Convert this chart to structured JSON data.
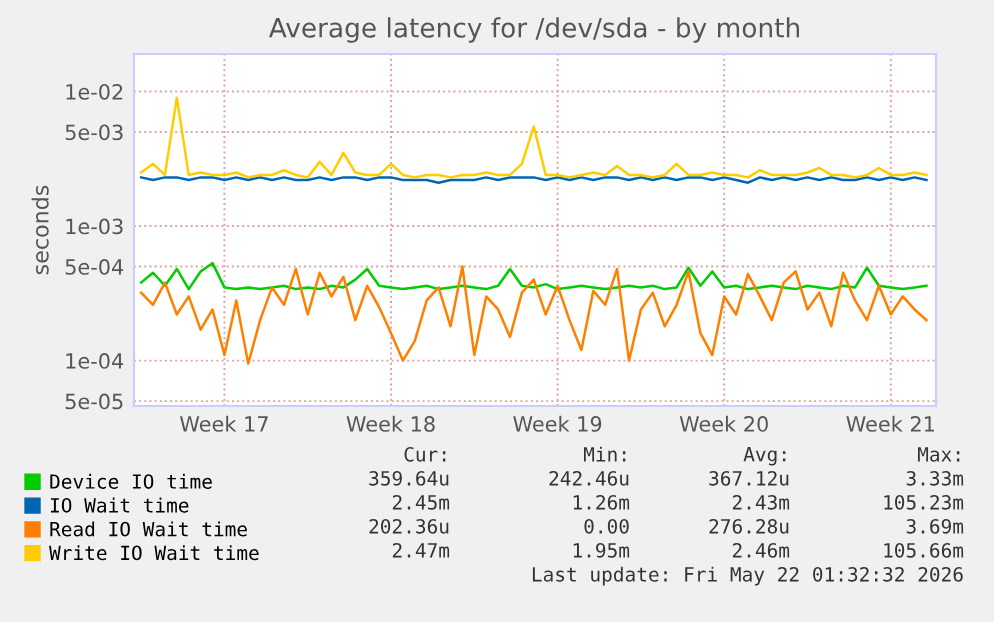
{
  "chart_data": {
    "type": "line",
    "title": "Average latency for /dev/sda - by month",
    "ylabel": "seconds",
    "categories": [
      null,
      null,
      null,
      null,
      null,
      null,
      null,
      "Week 17",
      null,
      null,
      null,
      null,
      null,
      null,
      null,
      null,
      null,
      null,
      null,
      null,
      null,
      "Week 18",
      null,
      null,
      null,
      null,
      null,
      null,
      null,
      null,
      null,
      null,
      null,
      null,
      null,
      "Week 19",
      null,
      null,
      null,
      null,
      null,
      null,
      null,
      null,
      null,
      null,
      null,
      null,
      null,
      "Week 20",
      null,
      null,
      null,
      null,
      null,
      null,
      null,
      null,
      null,
      null,
      null,
      null,
      null,
      "Week 21",
      null,
      null,
      null
    ],
    "series": [
      {
        "name": "Device IO time",
        "color": "#00cc00",
        "values": [
          0.00038,
          0.00045,
          0.00036,
          0.00048,
          0.00034,
          0.00046,
          0.00053,
          0.00035,
          0.00034,
          0.00035,
          0.00034,
          0.00035,
          0.00036,
          0.00034,
          0.00035,
          0.00034,
          0.00036,
          0.00035,
          0.0004,
          0.00048,
          0.00036,
          0.00035,
          0.00034,
          0.00035,
          0.00036,
          0.00034,
          0.00035,
          0.00036,
          0.00035,
          0.00034,
          0.00036,
          0.00048,
          0.00036,
          0.00035,
          0.00037,
          0.00034,
          0.00035,
          0.00036,
          0.00035,
          0.00034,
          0.00035,
          0.00036,
          0.00035,
          0.00036,
          0.00034,
          0.00035,
          0.00049,
          0.00036,
          0.00046,
          0.00035,
          0.00036,
          0.00034,
          0.00035,
          0.00036,
          0.00035,
          0.00034,
          0.00036,
          0.00035,
          0.00034,
          0.00036,
          0.00035,
          0.00049,
          0.00036,
          0.00035,
          0.00034,
          0.00035,
          0.00036
        ]
      },
      {
        "name": "IO Wait time",
        "color": "#0066b3",
        "values": [
          0.0023,
          0.0022,
          0.0023,
          0.0023,
          0.0022,
          0.0023,
          0.0023,
          0.0022,
          0.0023,
          0.0022,
          0.0023,
          0.0022,
          0.0023,
          0.0022,
          0.0022,
          0.0023,
          0.0022,
          0.0023,
          0.0023,
          0.0022,
          0.0023,
          0.0023,
          0.0022,
          0.0022,
          0.0022,
          0.0021,
          0.0022,
          0.0022,
          0.0022,
          0.0023,
          0.0022,
          0.0023,
          0.0023,
          0.0023,
          0.0022,
          0.0023,
          0.0022,
          0.0023,
          0.0022,
          0.0023,
          0.0023,
          0.0022,
          0.0023,
          0.0022,
          0.0023,
          0.0022,
          0.0023,
          0.0023,
          0.0022,
          0.0023,
          0.0022,
          0.0021,
          0.0023,
          0.0022,
          0.0023,
          0.0022,
          0.0023,
          0.0022,
          0.0023,
          0.0022,
          0.0022,
          0.0023,
          0.0022,
          0.0023,
          0.0022,
          0.0023,
          0.0022
        ]
      },
      {
        "name": "Read IO Wait time",
        "color": "#ff8000",
        "values": [
          0.00032,
          0.00026,
          0.00038,
          0.00022,
          0.0003,
          0.00017,
          0.00024,
          0.00011,
          0.00028,
          9.5e-05,
          0.0002,
          0.00035,
          0.00026,
          0.00048,
          0.00022,
          0.00045,
          0.0003,
          0.00042,
          0.0002,
          0.00036,
          0.00025,
          0.00016,
          0.0001,
          0.00014,
          0.00028,
          0.00035,
          0.00018,
          0.0005,
          0.00011,
          0.0003,
          0.00024,
          0.00015,
          0.00032,
          0.0004,
          0.00022,
          0.00036,
          0.0002,
          0.00012,
          0.00033,
          0.00026,
          0.00048,
          0.0001,
          0.00024,
          0.00032,
          0.00018,
          0.00026,
          0.00046,
          0.00016,
          0.00011,
          0.0003,
          0.00022,
          0.00044,
          0.0003,
          0.0002,
          0.00038,
          0.00046,
          0.00024,
          0.00032,
          0.00018,
          0.00045,
          0.00028,
          0.0002,
          0.00036,
          0.00022,
          0.0003,
          0.00024,
          0.0002
        ]
      },
      {
        "name": "Write IO Wait time",
        "color": "#ffcc00",
        "values": [
          0.0025,
          0.0029,
          0.0024,
          0.009,
          0.0024,
          0.0025,
          0.0024,
          0.0024,
          0.0025,
          0.0023,
          0.0024,
          0.0024,
          0.0026,
          0.0024,
          0.0023,
          0.003,
          0.0024,
          0.0035,
          0.0025,
          0.0024,
          0.0024,
          0.0029,
          0.0024,
          0.0023,
          0.0024,
          0.0024,
          0.0023,
          0.0024,
          0.0024,
          0.0025,
          0.0024,
          0.0024,
          0.0029,
          0.0055,
          0.0024,
          0.0024,
          0.0023,
          0.0024,
          0.0025,
          0.0024,
          0.0028,
          0.0024,
          0.0024,
          0.0023,
          0.0024,
          0.0029,
          0.0024,
          0.0024,
          0.0025,
          0.0024,
          0.0024,
          0.0023,
          0.0026,
          0.0024,
          0.0024,
          0.0024,
          0.0025,
          0.0027,
          0.0024,
          0.0024,
          0.0023,
          0.0024,
          0.0027,
          0.0024,
          0.0024,
          0.0025,
          0.0024
        ]
      }
    ],
    "ylim": [
      4.6e-05,
      0.019
    ],
    "yticks": [
      {
        "value": 5e-05,
        "label": "5e-05"
      },
      {
        "value": 0.0001,
        "label": "1e-04"
      },
      {
        "value": 0.0005,
        "label": "5e-04"
      },
      {
        "value": 0.001,
        "label": "1e-03"
      },
      {
        "value": 0.005,
        "label": "5e-03"
      },
      {
        "value": 0.01,
        "label": "1e-02"
      }
    ],
    "log": true,
    "grid": true,
    "legend": "bottom",
    "line_style": "solid",
    "marker": "none",
    "annotations": [
      "Cur:",
      "Min:",
      "Avg:",
      "Max:",
      "359.64u",
      "242.46u",
      "367.12u",
      "3.33m",
      "2.45m",
      "1.26m",
      "2.43m",
      "105.23m",
      "202.36u",
      "0.00",
      "276.28u",
      "3.69m",
      "2.47m",
      "1.95m",
      "2.46m",
      "105.66m",
      "Last update: Fri May 22 01:32:32 2026"
    ]
  }
}
